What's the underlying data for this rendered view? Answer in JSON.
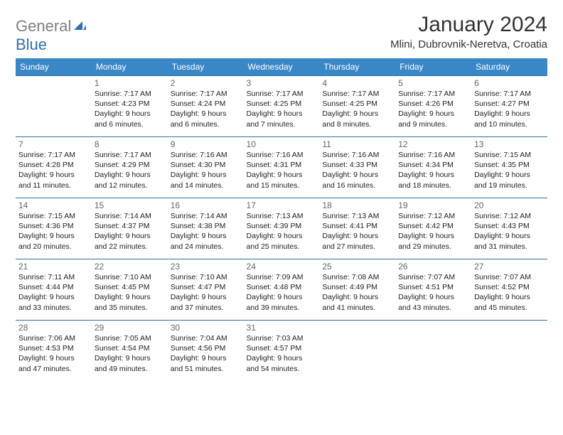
{
  "logo": {
    "part1": "General",
    "part2": "Blue"
  },
  "title": "January 2024",
  "location": "Mlini, Dubrovnik-Neretva, Croatia",
  "colors": {
    "header_bg": "#3a87c8",
    "header_text": "#ffffff",
    "rule": "#2f6fb0",
    "logo_gray": "#808080",
    "logo_blue": "#2f6fb0"
  },
  "weekdays": [
    "Sunday",
    "Monday",
    "Tuesday",
    "Wednesday",
    "Thursday",
    "Friday",
    "Saturday"
  ],
  "labels": {
    "sunrise": "Sunrise:",
    "sunset": "Sunset:",
    "daylight": "Daylight:"
  },
  "weeks": [
    [
      null,
      {
        "n": "1",
        "sr": "7:17 AM",
        "ss": "4:23 PM",
        "dl": "9 hours and 6 minutes."
      },
      {
        "n": "2",
        "sr": "7:17 AM",
        "ss": "4:24 PM",
        "dl": "9 hours and 6 minutes."
      },
      {
        "n": "3",
        "sr": "7:17 AM",
        "ss": "4:25 PM",
        "dl": "9 hours and 7 minutes."
      },
      {
        "n": "4",
        "sr": "7:17 AM",
        "ss": "4:25 PM",
        "dl": "9 hours and 8 minutes."
      },
      {
        "n": "5",
        "sr": "7:17 AM",
        "ss": "4:26 PM",
        "dl": "9 hours and 9 minutes."
      },
      {
        "n": "6",
        "sr": "7:17 AM",
        "ss": "4:27 PM",
        "dl": "9 hours and 10 minutes."
      }
    ],
    [
      {
        "n": "7",
        "sr": "7:17 AM",
        "ss": "4:28 PM",
        "dl": "9 hours and 11 minutes."
      },
      {
        "n": "8",
        "sr": "7:17 AM",
        "ss": "4:29 PM",
        "dl": "9 hours and 12 minutes."
      },
      {
        "n": "9",
        "sr": "7:16 AM",
        "ss": "4:30 PM",
        "dl": "9 hours and 14 minutes."
      },
      {
        "n": "10",
        "sr": "7:16 AM",
        "ss": "4:31 PM",
        "dl": "9 hours and 15 minutes."
      },
      {
        "n": "11",
        "sr": "7:16 AM",
        "ss": "4:33 PM",
        "dl": "9 hours and 16 minutes."
      },
      {
        "n": "12",
        "sr": "7:16 AM",
        "ss": "4:34 PM",
        "dl": "9 hours and 18 minutes."
      },
      {
        "n": "13",
        "sr": "7:15 AM",
        "ss": "4:35 PM",
        "dl": "9 hours and 19 minutes."
      }
    ],
    [
      {
        "n": "14",
        "sr": "7:15 AM",
        "ss": "4:36 PM",
        "dl": "9 hours and 20 minutes."
      },
      {
        "n": "15",
        "sr": "7:14 AM",
        "ss": "4:37 PM",
        "dl": "9 hours and 22 minutes."
      },
      {
        "n": "16",
        "sr": "7:14 AM",
        "ss": "4:38 PM",
        "dl": "9 hours and 24 minutes."
      },
      {
        "n": "17",
        "sr": "7:13 AM",
        "ss": "4:39 PM",
        "dl": "9 hours and 25 minutes."
      },
      {
        "n": "18",
        "sr": "7:13 AM",
        "ss": "4:41 PM",
        "dl": "9 hours and 27 minutes."
      },
      {
        "n": "19",
        "sr": "7:12 AM",
        "ss": "4:42 PM",
        "dl": "9 hours and 29 minutes."
      },
      {
        "n": "20",
        "sr": "7:12 AM",
        "ss": "4:43 PM",
        "dl": "9 hours and 31 minutes."
      }
    ],
    [
      {
        "n": "21",
        "sr": "7:11 AM",
        "ss": "4:44 PM",
        "dl": "9 hours and 33 minutes."
      },
      {
        "n": "22",
        "sr": "7:10 AM",
        "ss": "4:45 PM",
        "dl": "9 hours and 35 minutes."
      },
      {
        "n": "23",
        "sr": "7:10 AM",
        "ss": "4:47 PM",
        "dl": "9 hours and 37 minutes."
      },
      {
        "n": "24",
        "sr": "7:09 AM",
        "ss": "4:48 PM",
        "dl": "9 hours and 39 minutes."
      },
      {
        "n": "25",
        "sr": "7:08 AM",
        "ss": "4:49 PM",
        "dl": "9 hours and 41 minutes."
      },
      {
        "n": "26",
        "sr": "7:07 AM",
        "ss": "4:51 PM",
        "dl": "9 hours and 43 minutes."
      },
      {
        "n": "27",
        "sr": "7:07 AM",
        "ss": "4:52 PM",
        "dl": "9 hours and 45 minutes."
      }
    ],
    [
      {
        "n": "28",
        "sr": "7:06 AM",
        "ss": "4:53 PM",
        "dl": "9 hours and 47 minutes."
      },
      {
        "n": "29",
        "sr": "7:05 AM",
        "ss": "4:54 PM",
        "dl": "9 hours and 49 minutes."
      },
      {
        "n": "30",
        "sr": "7:04 AM",
        "ss": "4:56 PM",
        "dl": "9 hours and 51 minutes."
      },
      {
        "n": "31",
        "sr": "7:03 AM",
        "ss": "4:57 PM",
        "dl": "9 hours and 54 minutes."
      },
      null,
      null,
      null
    ]
  ]
}
